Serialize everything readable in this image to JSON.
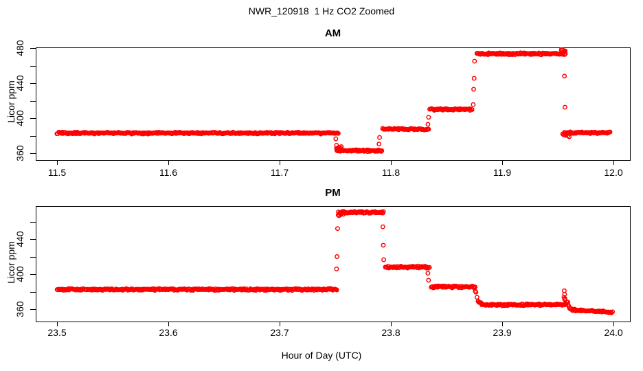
{
  "title": "NWR_120918  1 Hz CO2 Zoomed",
  "xlabel": "Hour of Day (UTC)",
  "ylabel": "Licor ppm",
  "colors": {
    "points": "#ff0000",
    "axis": "#000000",
    "background": "#ffffff"
  },
  "chart_data": [
    {
      "type": "scatter",
      "panel": "AM",
      "title": "AM",
      "marker": "open-circle",
      "color": "#ff0000",
      "xlim": [
        11.48,
        12.015
      ],
      "ylim": [
        352,
        481
      ],
      "x_ticks": [
        {
          "t": 11.5,
          "label": "11.5"
        },
        {
          "t": 11.6,
          "label": "11.6"
        },
        {
          "t": 11.7,
          "label": "11.7"
        },
        {
          "t": 11.8,
          "label": "11.8"
        },
        {
          "t": 11.9,
          "label": "11.9"
        },
        {
          "t": 12.0,
          "label": "12.0"
        }
      ],
      "y_ticks": [
        {
          "v": 360,
          "label": "360"
        },
        {
          "v": 380,
          "label": ""
        },
        {
          "v": 400,
          "label": "400"
        },
        {
          "v": 420,
          "label": ""
        },
        {
          "v": 440,
          "label": "440"
        },
        {
          "v": 460,
          "label": ""
        },
        {
          "v": 480,
          "label": "480"
        }
      ],
      "segments": [
        {
          "t0": 11.5,
          "t1": 11.7525,
          "v0": 383.0,
          "spread": 1.2
        },
        {
          "t0": 11.7508,
          "t1": 11.756,
          "v0": 365.5,
          "spread": 3.0
        },
        {
          "t0": 11.7515,
          "t1": 11.792,
          "v0": 363.0,
          "spread": 1.2
        },
        {
          "t0": 11.7925,
          "t1": 11.834,
          "v0": 387.5,
          "spread": 1.2
        },
        {
          "t0": 11.835,
          "t1": 11.873,
          "v0": 410.0,
          "spread": 1.2
        },
        {
          "t0": 11.877,
          "t1": 11.9568,
          "v0": 473.5,
          "spread": 1.4
        },
        {
          "t0": 11.953,
          "t1": 11.9568,
          "v0": 476.5,
          "spread": 1.8
        },
        {
          "t0": 11.9545,
          "t1": 11.961,
          "v0": 381.0,
          "spread": 4.0
        },
        {
          "t0": 11.956,
          "t1": 11.997,
          "v0": 383.5,
          "spread": 1.3
        }
      ],
      "transition_points": [
        [
          11.7505,
          376.5
        ],
        [
          11.7512,
          369.0
        ],
        [
          11.7893,
          370.5
        ],
        [
          11.7899,
          378.0
        ],
        [
          11.8333,
          393.0
        ],
        [
          11.8339,
          401.0
        ],
        [
          11.874,
          415.5
        ],
        [
          11.8744,
          433.0
        ],
        [
          11.8748,
          445.5
        ],
        [
          11.8752,
          465.0
        ],
        [
          11.956,
          448.0
        ],
        [
          11.9564,
          412.5
        ]
      ]
    },
    {
      "type": "scatter",
      "panel": "PM",
      "title": "PM",
      "marker": "open-circle",
      "color": "#ff0000",
      "xlim": [
        23.48,
        24.015
      ],
      "ylim": [
        346,
        477
      ],
      "x_ticks": [
        {
          "t": 23.5,
          "label": "23.5"
        },
        {
          "t": 23.6,
          "label": "23.6"
        },
        {
          "t": 23.7,
          "label": "23.7"
        },
        {
          "t": 23.8,
          "label": "23.8"
        },
        {
          "t": 23.9,
          "label": "23.9"
        },
        {
          "t": 24.0,
          "label": "24.0"
        }
      ],
      "y_ticks": [
        {
          "v": 360,
          "label": "360"
        },
        {
          "v": 380,
          "label": ""
        },
        {
          "v": 400,
          "label": "400"
        },
        {
          "v": 420,
          "label": ""
        },
        {
          "v": 440,
          "label": "440"
        },
        {
          "v": 460,
          "label": ""
        }
      ],
      "segments": [
        {
          "t0": 23.5,
          "t1": 23.7515,
          "v0": 382.5,
          "spread": 1.2
        },
        {
          "t0": 23.7527,
          "t1": 23.757,
          "v0": 469.0,
          "spread": 2.5
        },
        {
          "t0": 23.753,
          "t1": 23.7935,
          "v0": 470.5,
          "spread": 1.4
        },
        {
          "t0": 23.795,
          "t1": 23.8345,
          "v0": 408.0,
          "spread": 1.3
        },
        {
          "t0": 23.836,
          "t1": 23.876,
          "v0": 385.5,
          "spread": 1.3
        },
        {
          "t0": 23.8765,
          "t1": 23.8815,
          "v0": 379.0,
          "v1": 366.5,
          "spread": 1.0,
          "ease": "decay"
        },
        {
          "t0": 23.8815,
          "t1": 23.9555,
          "v0": 365.0,
          "spread": 1.2
        },
        {
          "t0": 23.9555,
          "t1": 23.959,
          "v0": 374.0,
          "v1": 366.0,
          "spread": 2.5,
          "ease": "decay"
        },
        {
          "t0": 23.959,
          "t1": 23.965,
          "v0": 366.0,
          "v1": 359.5,
          "spread": 1.0,
          "ease": "decay"
        },
        {
          "t0": 23.963,
          "t1": 23.999,
          "v0": 359.0,
          "v1": 356.5,
          "spread": 1.2
        }
      ],
      "transition_points": [
        [
          23.7512,
          406.0
        ],
        [
          23.7516,
          420.0
        ],
        [
          23.7521,
          452.0
        ],
        [
          23.7928,
          454.0
        ],
        [
          23.7932,
          433.0
        ],
        [
          23.7936,
          416.5
        ],
        [
          23.8333,
          401.0
        ],
        [
          23.8338,
          393.0
        ],
        [
          23.8758,
          380.5
        ],
        [
          23.9558,
          381.0
        ],
        [
          23.9561,
          377.0
        ],
        [
          23.9564,
          372.0
        ]
      ]
    }
  ]
}
